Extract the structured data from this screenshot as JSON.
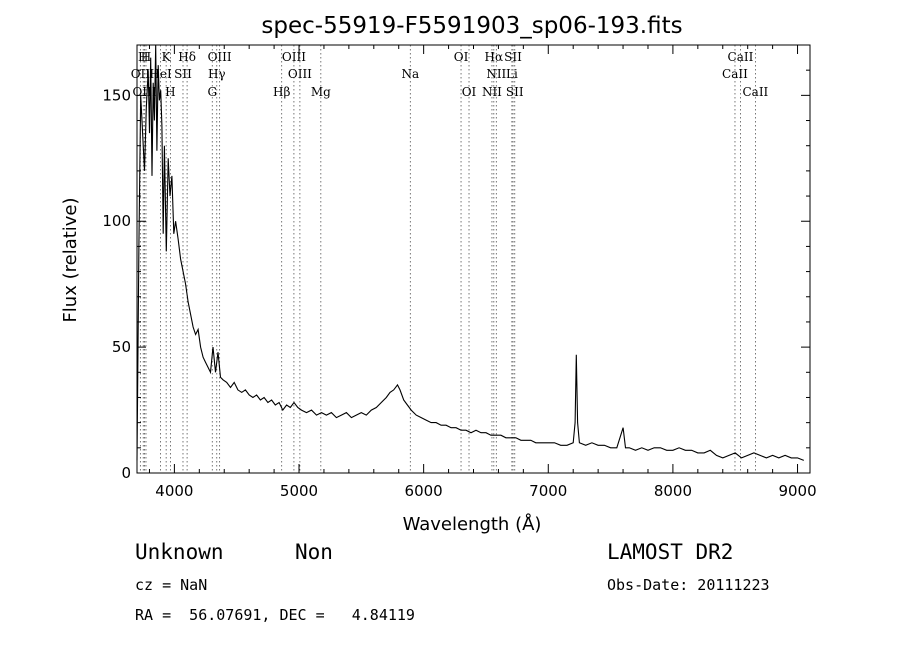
{
  "chart_data": {
    "type": "line",
    "title": "spec-55919-F5591903_sp06-193.fits",
    "xlabel": "Wavelength (Å)",
    "ylabel": "Flux (relative)",
    "xlim": [
      3700,
      9100
    ],
    "ylim": [
      0,
      170
    ],
    "x_ticks": [
      4000,
      5000,
      6000,
      7000,
      8000,
      9000
    ],
    "y_ticks": [
      0,
      50,
      100,
      150
    ],
    "grid": false,
    "series": [
      {
        "values": [
          [
            3700,
            5
          ],
          [
            3715,
            90
          ],
          [
            3730,
            150
          ],
          [
            3745,
            135
          ],
          [
            3760,
            120
          ],
          [
            3775,
            145
          ],
          [
            3790,
            160
          ],
          [
            3800,
            135
          ],
          [
            3810,
            165
          ],
          [
            3820,
            118
          ],
          [
            3830,
            155
          ],
          [
            3840,
            140
          ],
          [
            3850,
            170
          ],
          [
            3860,
            128
          ],
          [
            3870,
            162
          ],
          [
            3880,
            148
          ],
          [
            3890,
            152
          ],
          [
            3900,
            138
          ],
          [
            3910,
            95
          ],
          [
            3920,
            130
          ],
          [
            3935,
            88
          ],
          [
            3950,
            125
          ],
          [
            3965,
            110
          ],
          [
            3980,
            118
          ],
          [
            3995,
            95
          ],
          [
            4010,
            100
          ],
          [
            4030,
            93
          ],
          [
            4050,
            85
          ],
          [
            4070,
            80
          ],
          [
            4090,
            75
          ],
          [
            4110,
            68
          ],
          [
            4130,
            63
          ],
          [
            4150,
            58
          ],
          [
            4170,
            55
          ],
          [
            4190,
            57
          ],
          [
            4210,
            50
          ],
          [
            4230,
            46
          ],
          [
            4250,
            44
          ],
          [
            4270,
            42
          ],
          [
            4290,
            40
          ],
          [
            4310,
            50
          ],
          [
            4330,
            40
          ],
          [
            4350,
            48
          ],
          [
            4370,
            38
          ],
          [
            4390,
            37
          ],
          [
            4420,
            36
          ],
          [
            4450,
            34
          ],
          [
            4480,
            36
          ],
          [
            4510,
            33
          ],
          [
            4540,
            32
          ],
          [
            4570,
            33
          ],
          [
            4600,
            31
          ],
          [
            4630,
            30
          ],
          [
            4660,
            31
          ],
          [
            4690,
            29
          ],
          [
            4720,
            30
          ],
          [
            4750,
            28
          ],
          [
            4780,
            29
          ],
          [
            4810,
            27
          ],
          [
            4840,
            28
          ],
          [
            4870,
            25
          ],
          [
            4900,
            27
          ],
          [
            4930,
            26
          ],
          [
            4960,
            28
          ],
          [
            4990,
            26
          ],
          [
            5020,
            25
          ],
          [
            5060,
            24
          ],
          [
            5100,
            25
          ],
          [
            5140,
            23
          ],
          [
            5180,
            24
          ],
          [
            5220,
            23
          ],
          [
            5260,
            24
          ],
          [
            5300,
            22
          ],
          [
            5340,
            23
          ],
          [
            5380,
            24
          ],
          [
            5420,
            22
          ],
          [
            5460,
            23
          ],
          [
            5500,
            24
          ],
          [
            5540,
            23
          ],
          [
            5580,
            25
          ],
          [
            5620,
            26
          ],
          [
            5660,
            28
          ],
          [
            5700,
            30
          ],
          [
            5730,
            32
          ],
          [
            5760,
            33
          ],
          [
            5790,
            35
          ],
          [
            5810,
            33
          ],
          [
            5840,
            29
          ],
          [
            5870,
            27
          ],
          [
            5900,
            25
          ],
          [
            5940,
            23
          ],
          [
            5980,
            22
          ],
          [
            6020,
            21
          ],
          [
            6060,
            20
          ],
          [
            6100,
            20
          ],
          [
            6140,
            19
          ],
          [
            6180,
            19
          ],
          [
            6220,
            18
          ],
          [
            6260,
            18
          ],
          [
            6300,
            17
          ],
          [
            6340,
            17
          ],
          [
            6380,
            16
          ],
          [
            6420,
            17
          ],
          [
            6460,
            16
          ],
          [
            6500,
            16
          ],
          [
            6540,
            15
          ],
          [
            6580,
            15
          ],
          [
            6620,
            15
          ],
          [
            6660,
            14
          ],
          [
            6700,
            14
          ],
          [
            6740,
            14
          ],
          [
            6780,
            13
          ],
          [
            6820,
            13
          ],
          [
            6860,
            13
          ],
          [
            6900,
            12
          ],
          [
            6950,
            12
          ],
          [
            7000,
            12
          ],
          [
            7050,
            12
          ],
          [
            7100,
            11
          ],
          [
            7150,
            11
          ],
          [
            7200,
            12
          ],
          [
            7215,
            20
          ],
          [
            7225,
            47
          ],
          [
            7235,
            20
          ],
          [
            7250,
            12
          ],
          [
            7300,
            11
          ],
          [
            7350,
            12
          ],
          [
            7400,
            11
          ],
          [
            7450,
            11
          ],
          [
            7500,
            10
          ],
          [
            7550,
            10
          ],
          [
            7600,
            18
          ],
          [
            7620,
            10
          ],
          [
            7650,
            10
          ],
          [
            7700,
            9
          ],
          [
            7750,
            10
          ],
          [
            7800,
            9
          ],
          [
            7850,
            10
          ],
          [
            7900,
            10
          ],
          [
            7950,
            9
          ],
          [
            8000,
            9
          ],
          [
            8050,
            10
          ],
          [
            8100,
            9
          ],
          [
            8150,
            9
          ],
          [
            8200,
            8
          ],
          [
            8250,
            8
          ],
          [
            8300,
            9
          ],
          [
            8350,
            7
          ],
          [
            8400,
            6
          ],
          [
            8450,
            7
          ],
          [
            8500,
            8
          ],
          [
            8550,
            6
          ],
          [
            8600,
            7
          ],
          [
            8650,
            8
          ],
          [
            8700,
            7
          ],
          [
            8750,
            6
          ],
          [
            8800,
            7
          ],
          [
            8850,
            6
          ],
          [
            8900,
            7
          ],
          [
            8950,
            6
          ],
          [
            9000,
            6
          ],
          [
            9050,
            5
          ]
        ]
      }
    ],
    "spectral_lines": [
      {
        "label": "H",
        "wavelength": 3750,
        "row": 0
      },
      {
        "label": "H",
        "wavelength": 3772,
        "row": 0
      },
      {
        "label": "K",
        "wavelength": 3934,
        "row": 0
      },
      {
        "label": "Hδ",
        "wavelength": 4102,
        "row": 0
      },
      {
        "label": "OIII",
        "wavelength": 4363,
        "row": 0
      },
      {
        "label": "OIII",
        "wavelength": 4959,
        "row": 0
      },
      {
        "label": "OI",
        "wavelength": 6300,
        "row": 0
      },
      {
        "label": "Hα",
        "wavelength": 6563,
        "row": 0
      },
      {
        "label": "SII",
        "wavelength": 6717,
        "row": 0
      },
      {
        "label": "CaII",
        "wavelength": 8542,
        "row": 0
      },
      {
        "label": "OII",
        "wavelength": 3727,
        "row": 1
      },
      {
        "label": "HeI",
        "wavelength": 3889,
        "row": 1
      },
      {
        "label": "SII",
        "wavelength": 4069,
        "row": 1
      },
      {
        "label": "Hγ",
        "wavelength": 4340,
        "row": 1
      },
      {
        "label": "OIII",
        "wavelength": 5007,
        "row": 1
      },
      {
        "label": "Na",
        "wavelength": 5893,
        "row": 1
      },
      {
        "label": "NII",
        "wavelength": 6583,
        "row": 1
      },
      {
        "label": "Li",
        "wavelength": 6708,
        "row": 1
      },
      {
        "label": "CaII",
        "wavelength": 8498,
        "row": 1
      },
      {
        "label": "OIII",
        "wavelength": 3760,
        "row": 2
      },
      {
        "label": "H",
        "wavelength": 3968,
        "row": 2
      },
      {
        "label": "G",
        "wavelength": 4304,
        "row": 2
      },
      {
        "label": "Hβ",
        "wavelength": 4861,
        "row": 2
      },
      {
        "label": "Mg",
        "wavelength": 5175,
        "row": 2
      },
      {
        "label": "OI",
        "wavelength": 6364,
        "row": 2
      },
      {
        "label": "NII",
        "wavelength": 6548,
        "row": 2
      },
      {
        "label": "SII",
        "wavelength": 6731,
        "row": 2
      },
      {
        "label": "CaII",
        "wavelength": 8662,
        "row": 2
      }
    ]
  },
  "info": {
    "class": "Unknown",
    "subclass": "Non",
    "survey": "LAMOST DR2",
    "cz": "cz = NaN",
    "obs_date": "Obs-Date: 20111223",
    "coords": "RA =  56.07691, DEC =   4.84119"
  }
}
